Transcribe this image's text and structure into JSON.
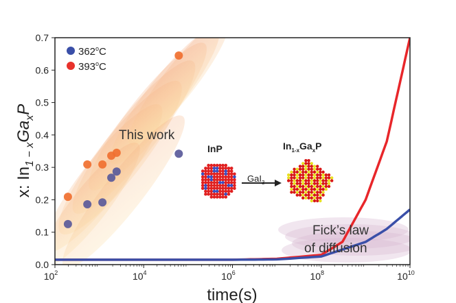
{
  "chart_data": {
    "type": "scatter",
    "title": "",
    "xlabel": "time(s)",
    "ylabel": "x: In1−xGaxP",
    "ylabel_parts": {
      "prefix": "x: In",
      "sub1": "1 − x",
      "mid": "Ga",
      "sub2": "x",
      "suffix": "P"
    },
    "xscale": "log",
    "xlim": [
      100,
      10000000000
    ],
    "ylim": [
      0,
      0.7
    ],
    "x_ticks": [
      {
        "base": "10",
        "exp": "2",
        "v": 100
      },
      {
        "base": "10",
        "exp": "4",
        "v": 10000
      },
      {
        "base": "10",
        "exp": "6",
        "v": 1000000
      },
      {
        "base": "10",
        "exp": "8",
        "v": 100000000
      },
      {
        "base": "10",
        "exp": "10",
        "v": 10000000000
      }
    ],
    "y_ticks": [
      "0.0",
      "0.1",
      "0.2",
      "0.3",
      "0.4",
      "0.5",
      "0.6",
      "0.7"
    ],
    "legend": {
      "placement": "top-left",
      "entries": [
        {
          "label": "362",
          "deg": "o",
          "unit": "C",
          "color": "#3a4fa8"
        },
        {
          "label": "393",
          "deg": "o",
          "unit": "C",
          "color": "#e8322c"
        }
      ]
    },
    "series": [
      {
        "name": "362°C",
        "color": "#5a5a9a",
        "points": [
          [
            196,
            0.125
          ],
          [
            537,
            0.186
          ],
          [
            1175,
            0.192
          ],
          [
            1862,
            0.268
          ],
          [
            2455,
            0.287
          ],
          [
            61660,
            0.342
          ]
        ]
      },
      {
        "name": "393°C",
        "color": "#f07030",
        "points": [
          [
            196,
            0.209
          ],
          [
            537,
            0.309
          ],
          [
            1175,
            0.309
          ],
          [
            1862,
            0.336
          ],
          [
            2455,
            0.345
          ],
          [
            61660,
            0.645
          ]
        ]
      }
    ],
    "curves": [
      {
        "name": "Fick's law 393°C",
        "color": "#e8262a",
        "points": [
          [
            100,
            0.015
          ],
          [
            1000000,
            0.015
          ],
          [
            10000000,
            0.018
          ],
          [
            100000000,
            0.03
          ],
          [
            300000000,
            0.07
          ],
          [
            1000000000,
            0.2
          ],
          [
            3000000000,
            0.38
          ],
          [
            10000000000,
            0.7
          ]
        ]
      },
      {
        "name": "Fick's law 362°C",
        "color": "#3a4fa8",
        "points": [
          [
            100,
            0.015
          ],
          [
            1000000,
            0.015
          ],
          [
            10000000,
            0.016
          ],
          [
            100000000,
            0.025
          ],
          [
            1000000000,
            0.07
          ],
          [
            3000000000,
            0.11
          ],
          [
            10000000000,
            0.17
          ]
        ]
      }
    ],
    "annotations": {
      "this_work": "This work",
      "fick_line1": "Fick’s law",
      "fick_line2": "of diffusion",
      "inp": "InP",
      "product": {
        "a": "In",
        "sub1": "1-x",
        "b": "Ga",
        "sub2": "x",
        "c": "P"
      },
      "reagent": {
        "a": "GaI",
        "sub": "3"
      }
    }
  }
}
